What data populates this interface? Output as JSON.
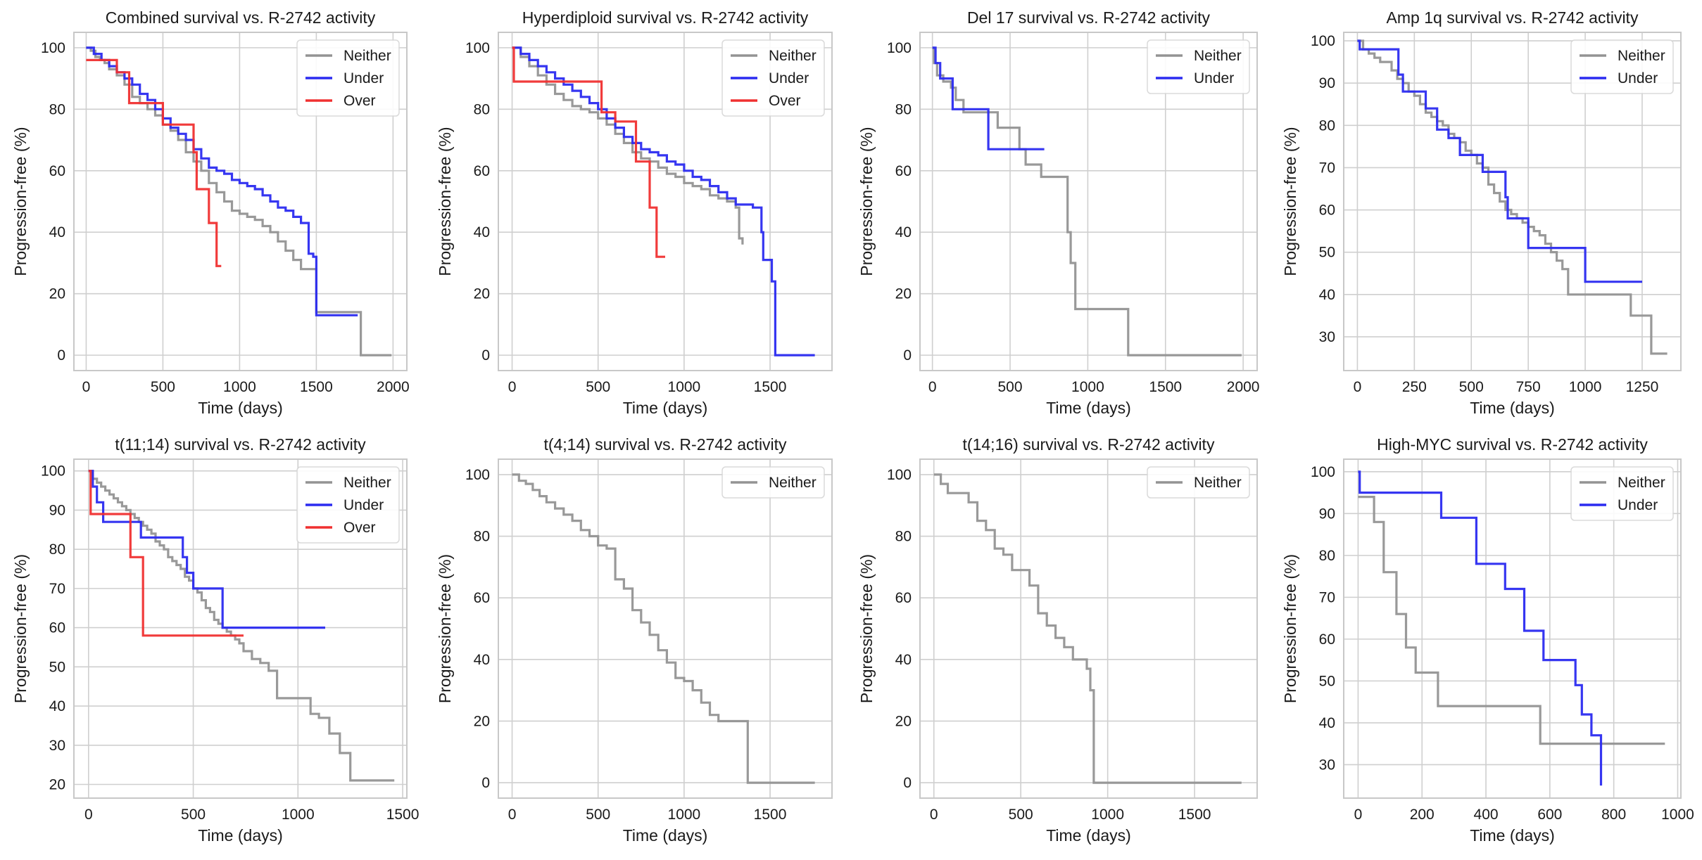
{
  "colors": {
    "Neither": "#939393",
    "Under": "#2b2bf0",
    "Over": "#f03030",
    "grid": "#cfcfcf",
    "frame": "#c8c8c8",
    "text": "#1a1a1a"
  },
  "chart_data": [
    {
      "type": "line",
      "step": true,
      "title": "Combined survival vs. R-2742 activity",
      "xlabel": "Time (days)",
      "ylabel": "Progression-free (%)",
      "xlim": [
        -80,
        2090
      ],
      "ylim": [
        -5,
        105
      ],
      "xticks": [
        0,
        500,
        1000,
        1500,
        2000
      ],
      "yticks": [
        0,
        20,
        40,
        60,
        80,
        100
      ],
      "legend": "top-right",
      "grid": true,
      "series": [
        {
          "name": "Neither",
          "x": [
            0,
            30,
            60,
            90,
            120,
            150,
            200,
            250,
            300,
            350,
            400,
            450,
            500,
            550,
            600,
            650,
            700,
            750,
            800,
            850,
            900,
            950,
            1000,
            1050,
            1100,
            1150,
            1200,
            1250,
            1300,
            1350,
            1400,
            1450,
            1500,
            1550,
            1600,
            1650,
            1700,
            1780,
            1790,
            1990
          ],
          "y": [
            100,
            99,
            97,
            96,
            95,
            93,
            91,
            88,
            84,
            82,
            80,
            78,
            75,
            73,
            70,
            66,
            63,
            60,
            56,
            53,
            50,
            47,
            46,
            45,
            44,
            42,
            40,
            37,
            34,
            31,
            28,
            28,
            14,
            14,
            14,
            14,
            14,
            14,
            0,
            0
          ]
        },
        {
          "name": "Under",
          "x": [
            0,
            50,
            100,
            150,
            200,
            250,
            300,
            350,
            400,
            450,
            500,
            550,
            600,
            650,
            700,
            750,
            800,
            850,
            900,
            950,
            1000,
            1050,
            1100,
            1150,
            1200,
            1250,
            1300,
            1350,
            1400,
            1450,
            1480,
            1500,
            1550,
            1600,
            1650,
            1700,
            1770
          ],
          "y": [
            100,
            98,
            96,
            94,
            92,
            90,
            88,
            85,
            83,
            80,
            77,
            74,
            72,
            70,
            67,
            64,
            61,
            60,
            59,
            57,
            56,
            55,
            54,
            52,
            50,
            48,
            47,
            45,
            43,
            33,
            32,
            13,
            13,
            13,
            13,
            13,
            13
          ]
        },
        {
          "name": "Over",
          "x": [
            0,
            150,
            200,
            280,
            500,
            700,
            720,
            800,
            850,
            880
          ],
          "y": [
            96,
            96,
            92,
            82,
            75,
            66,
            54,
            43,
            29,
            29
          ]
        }
      ]
    },
    {
      "type": "line",
      "step": true,
      "title": "Hyperdiploid survival vs. R-2742 activity",
      "xlabel": "Time (days)",
      "ylabel": "Progression-free (%)",
      "xlim": [
        -80,
        1860
      ],
      "ylim": [
        -5,
        105
      ],
      "xticks": [
        0,
        500,
        1000,
        1500
      ],
      "yticks": [
        0,
        20,
        40,
        60,
        80,
        100
      ],
      "legend": "top-right",
      "grid": true,
      "series": [
        {
          "name": "Neither",
          "x": [
            0,
            50,
            100,
            150,
            200,
            250,
            300,
            350,
            400,
            450,
            500,
            550,
            600,
            650,
            700,
            750,
            800,
            850,
            900,
            950,
            1000,
            1050,
            1100,
            1150,
            1200,
            1250,
            1300,
            1320,
            1340
          ],
          "y": [
            100,
            97,
            94,
            91,
            88,
            85,
            83,
            81,
            80,
            79,
            77,
            75,
            72,
            69,
            66,
            64,
            63,
            61,
            59,
            58,
            56,
            55,
            54,
            52,
            51,
            50,
            48,
            38,
            36
          ]
        },
        {
          "name": "Under",
          "x": [
            0,
            50,
            100,
            150,
            200,
            250,
            300,
            350,
            400,
            450,
            500,
            550,
            600,
            650,
            700,
            750,
            800,
            850,
            900,
            950,
            1000,
            1050,
            1100,
            1150,
            1200,
            1250,
            1300,
            1350,
            1400,
            1450,
            1460,
            1500,
            1510,
            1530,
            1760
          ],
          "y": [
            100,
            98,
            96,
            94,
            92,
            90,
            88,
            86,
            84,
            82,
            80,
            77,
            74,
            71,
            69,
            67,
            66,
            65,
            63,
            62,
            60,
            58,
            57,
            55,
            53,
            51,
            49,
            49,
            48,
            40,
            31,
            31,
            24,
            0,
            0
          ]
        },
        {
          "name": "Over",
          "x": [
            0,
            10,
            500,
            520,
            600,
            720,
            800,
            840,
            890
          ],
          "y": [
            100,
            89,
            89,
            79,
            76,
            63,
            48,
            32,
            32
          ]
        }
      ]
    },
    {
      "type": "line",
      "step": true,
      "title": "Del 17 survival vs. R-2742 activity",
      "xlabel": "Time (days)",
      "ylabel": "Progression-free (%)",
      "xlim": [
        -80,
        2090
      ],
      "ylim": [
        -5,
        105
      ],
      "xticks": [
        0,
        500,
        1000,
        1500,
        2000
      ],
      "yticks": [
        0,
        20,
        40,
        60,
        80,
        100
      ],
      "legend": "top-right",
      "grid": true,
      "series": [
        {
          "name": "Neither",
          "x": [
            0,
            10,
            30,
            70,
            120,
            150,
            200,
            350,
            420,
            500,
            560,
            600,
            700,
            850,
            870,
            890,
            920,
            1250,
            1260,
            1990
          ],
          "y": [
            100,
            95,
            91,
            89,
            87,
            83,
            79,
            79,
            74,
            74,
            67,
            62,
            58,
            58,
            40,
            30,
            15,
            15,
            0,
            0
          ]
        },
        {
          "name": "Under",
          "x": [
            0,
            20,
            50,
            130,
            180,
            260,
            360,
            720
          ],
          "y": [
            100,
            95,
            90,
            80,
            80,
            80,
            67,
            67
          ]
        }
      ]
    },
    {
      "type": "line",
      "step": true,
      "title": "Amp 1q survival vs. R-2742 activity",
      "xlabel": "Time (days)",
      "ylabel": "Progression-free (%)",
      "xlim": [
        -60,
        1420
      ],
      "ylim": [
        22,
        102
      ],
      "xticks": [
        0,
        250,
        500,
        750,
        1000,
        1250
      ],
      "yticks": [
        30,
        40,
        50,
        60,
        70,
        80,
        90,
        100
      ],
      "legend": "top-right",
      "grid": true,
      "series": [
        {
          "name": "Neither",
          "x": [
            0,
            25,
            50,
            75,
            100,
            125,
            150,
            175,
            200,
            225,
            250,
            275,
            300,
            325,
            350,
            375,
            400,
            425,
            450,
            475,
            500,
            525,
            550,
            575,
            600,
            625,
            650,
            675,
            700,
            725,
            750,
            775,
            800,
            825,
            850,
            875,
            900,
            925,
            1000,
            1100,
            1200,
            1260,
            1290,
            1360
          ],
          "y": [
            100,
            98,
            97,
            96,
            95,
            95,
            93,
            91,
            90,
            88,
            87,
            85,
            83,
            82,
            81,
            80,
            78,
            77,
            76,
            74,
            73,
            71,
            70,
            66,
            64,
            62,
            60,
            59,
            58,
            57,
            56,
            55,
            54,
            52,
            50,
            48,
            46,
            40,
            40,
            40,
            35,
            35,
            26,
            26
          ]
        },
        {
          "name": "Under",
          "x": [
            0,
            10,
            150,
            180,
            200,
            270,
            300,
            350,
            400,
            450,
            550,
            650,
            660,
            700,
            750,
            980,
            1000,
            1250
          ],
          "y": [
            100,
            98,
            98,
            92,
            88,
            88,
            84,
            79,
            77,
            73,
            69,
            63,
            58,
            58,
            51,
            51,
            43,
            43
          ]
        }
      ]
    },
    {
      "type": "line",
      "step": true,
      "title": "t(11;14) survival vs. R-2742 activity",
      "xlabel": "Time (days)",
      "ylabel": "Progression-free (%)",
      "xlim": [
        -70,
        1520
      ],
      "ylim": [
        16.5,
        103
      ],
      "xticks": [
        0,
        500,
        1000,
        1500
      ],
      "yticks": [
        20,
        30,
        40,
        50,
        60,
        70,
        80,
        90,
        100
      ],
      "legend": "top-right",
      "grid": true,
      "series": [
        {
          "name": "Neither",
          "x": [
            0,
            20,
            40,
            60,
            80,
            100,
            120,
            140,
            160,
            180,
            200,
            220,
            240,
            260,
            280,
            300,
            320,
            340,
            360,
            380,
            400,
            420,
            440,
            460,
            480,
            500,
            520,
            540,
            560,
            580,
            600,
            620,
            640,
            660,
            680,
            700,
            720,
            740,
            780,
            820,
            860,
            900,
            1000,
            1060,
            1100,
            1150,
            1200,
            1250,
            1300,
            1460
          ],
          "y": [
            100,
            98,
            97,
            96,
            95,
            94,
            93,
            92,
            91,
            90,
            89,
            88,
            87,
            86,
            85,
            84,
            82,
            81,
            80,
            78,
            77,
            76,
            75,
            73,
            72,
            70,
            69,
            67,
            65,
            64,
            62,
            61,
            60,
            59,
            58,
            57,
            56,
            54,
            52,
            51,
            49,
            42,
            42,
            38,
            37,
            33,
            28,
            21,
            21,
            21
          ]
        },
        {
          "name": "Under",
          "x": [
            0,
            20,
            40,
            70,
            200,
            250,
            300,
            450,
            470,
            500,
            630,
            640,
            1130
          ],
          "y": [
            100,
            96,
            92,
            87,
            87,
            83,
            83,
            78,
            74,
            70,
            70,
            60,
            60
          ]
        },
        {
          "name": "Over",
          "x": [
            0,
            10,
            50,
            200,
            260,
            280,
            740
          ],
          "y": [
            100,
            89,
            89,
            78,
            58,
            58,
            58
          ]
        }
      ]
    },
    {
      "type": "line",
      "step": true,
      "title": "t(4;14) survival vs. R-2742 activity",
      "xlabel": "Time (days)",
      "ylabel": "Progression-free (%)",
      "xlim": [
        -80,
        1860
      ],
      "ylim": [
        -5,
        105
      ],
      "xticks": [
        0,
        500,
        1000,
        1500
      ],
      "yticks": [
        0,
        20,
        40,
        60,
        80,
        100
      ],
      "legend": "top-right",
      "grid": true,
      "series": [
        {
          "name": "Neither",
          "x": [
            0,
            40,
            80,
            120,
            160,
            200,
            250,
            300,
            350,
            400,
            450,
            500,
            550,
            600,
            650,
            700,
            750,
            800,
            850,
            900,
            950,
            1000,
            1050,
            1100,
            1150,
            1200,
            1360,
            1370,
            1760
          ],
          "y": [
            100,
            98,
            97,
            95,
            93,
            91,
            89,
            87,
            85,
            82,
            80,
            77,
            76,
            66,
            63,
            56,
            52,
            48,
            43,
            39,
            34,
            33,
            30,
            26,
            22,
            20,
            20,
            0,
            0
          ]
        }
      ]
    },
    {
      "type": "line",
      "step": true,
      "title": "t(14;16) survival vs. R-2742 activity",
      "xlabel": "Time (days)",
      "ylabel": "Progression-free (%)",
      "xlim": [
        -80,
        1860
      ],
      "ylim": [
        -5,
        105
      ],
      "xticks": [
        0,
        500,
        1000,
        1500
      ],
      "yticks": [
        0,
        20,
        40,
        60,
        80,
        100
      ],
      "legend": "top-right",
      "grid": true,
      "series": [
        {
          "name": "Neither",
          "x": [
            0,
            40,
            80,
            200,
            250,
            300,
            350,
            400,
            450,
            550,
            600,
            650,
            700,
            750,
            800,
            880,
            900,
            920,
            1770
          ],
          "y": [
            100,
            97,
            94,
            91,
            85,
            82,
            76,
            74,
            69,
            64,
            55,
            51,
            47,
            44,
            40,
            37,
            30,
            0,
            0
          ]
        }
      ]
    },
    {
      "type": "line",
      "step": true,
      "title": "High-MYC survival vs. R-2742 activity",
      "xlabel": "Time (days)",
      "ylabel": "Progression-free (%)",
      "xlim": [
        -45,
        1010
      ],
      "ylim": [
        22,
        103
      ],
      "xticks": [
        0,
        200,
        400,
        600,
        800,
        1000
      ],
      "yticks": [
        30,
        40,
        50,
        60,
        70,
        80,
        90,
        100
      ],
      "legend": "top-right",
      "grid": true,
      "series": [
        {
          "name": "Neither",
          "x": [
            0,
            50,
            80,
            120,
            150,
            180,
            240,
            250,
            560,
            570,
            960
          ],
          "y": [
            94,
            88,
            76,
            66,
            58,
            52,
            52,
            44,
            44,
            35,
            35
          ]
        },
        {
          "name": "Under",
          "x": [
            0,
            5,
            130,
            260,
            370,
            460,
            520,
            580,
            680,
            700,
            730,
            760
          ],
          "y": [
            100,
            95,
            95,
            89,
            78,
            72,
            62,
            55,
            49,
            42,
            37,
            25
          ]
        }
      ]
    }
  ]
}
